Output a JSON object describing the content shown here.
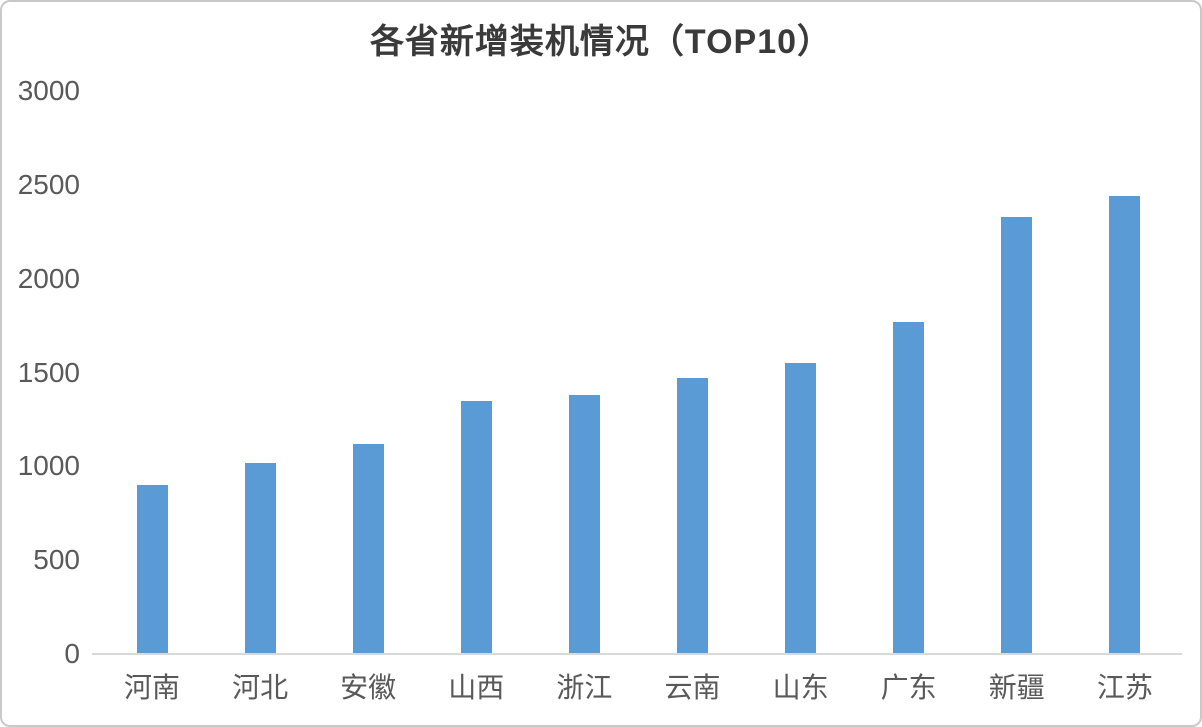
{
  "chart_data": {
    "type": "bar",
    "title": "各省新增装机情况（TOP10）",
    "categories": [
      "河南",
      "河北",
      "安徽",
      "山西",
      "浙江",
      "云南",
      "山东",
      "广东",
      "新疆",
      "江苏"
    ],
    "values": [
      900,
      1020,
      1120,
      1350,
      1380,
      1470,
      1550,
      1770,
      2330,
      2440
    ],
    "xlabel": "",
    "ylabel": "",
    "ylim": [
      0,
      3000
    ],
    "yticks": [
      0,
      500,
      1000,
      1500,
      2000,
      2500,
      3000
    ],
    "grid": false,
    "legend_position": "none",
    "bar_color": "#5B9BD5"
  },
  "colors": {
    "bar": "#5B9BD5",
    "title_text": "#3a3a3a",
    "axis_text": "#595959",
    "axis_line": "#d9d9d9",
    "card_border": "#c9c9c9",
    "background": "#ffffff"
  }
}
